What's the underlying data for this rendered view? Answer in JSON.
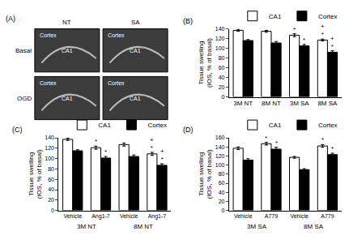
{
  "panel_a": {
    "title": "(A)",
    "columns": [
      "NT",
      "SA"
    ],
    "rows": [
      "Basal",
      "OGD"
    ],
    "regions": [
      "Cortex",
      "CA1"
    ]
  },
  "chart_data": [
    {
      "type": "bar",
      "title": "(B)",
      "y_label": "Tissue swelling (IOS, % of basal)",
      "categories": [
        "3M NT",
        "8M NT",
        "3M SA",
        "8M SA"
      ],
      "series": [
        {
          "name": "CA1",
          "color": "#ffffff",
          "values": [
            137,
            135,
            127,
            117
          ],
          "errors": [
            2,
            2,
            3,
            2
          ]
        },
        {
          "name": "Cortex",
          "color": "#000000",
          "values": [
            116,
            111,
            105,
            92
          ],
          "errors": [
            2,
            3,
            3,
            3
          ]
        }
      ],
      "ylim": [
        0,
        140
      ],
      "yticks": [
        0,
        20,
        40,
        60,
        80,
        100,
        120,
        140
      ],
      "grid": false,
      "legend": "upper right",
      "annotations": [
        {
          "category": 2,
          "series": "CA1",
          "lines": [
            "*"
          ]
        },
        {
          "category": 2,
          "series": "Cortex",
          "lines": [
            "*"
          ]
        },
        {
          "category": 3,
          "series": "CA1",
          "lines": [
            "+",
            "*"
          ]
        },
        {
          "category": 3,
          "series": "Cortex",
          "lines": [
            "+",
            "*"
          ]
        }
      ]
    },
    {
      "type": "bar",
      "title": "(C)",
      "y_label": "Tissue swelling (IOS, % of basal)",
      "categories": [
        "Vehicle",
        "Ang1-7",
        "Vehicle",
        "Ang1-7"
      ],
      "groups": [
        {
          "label": "3M NT",
          "categories": [
            0,
            1
          ]
        },
        {
          "label": "8M NT",
          "categories": [
            2,
            3
          ]
        }
      ],
      "series": [
        {
          "name": "CA1",
          "color": "#ffffff",
          "values": [
            137,
            121,
            127,
            109
          ],
          "errors": [
            2,
            3,
            3,
            3
          ]
        },
        {
          "name": "Cortex",
          "color": "#000000",
          "values": [
            115,
            101,
            104,
            87
          ],
          "errors": [
            2,
            3,
            3,
            3
          ]
        }
      ],
      "ylim": [
        0,
        140
      ],
      "yticks": [
        0,
        20,
        40,
        60,
        80,
        100,
        120,
        140
      ],
      "grid": false,
      "legend": "upper right",
      "annotations": [
        {
          "category": 1,
          "series": "CA1",
          "lines": [
            "*"
          ]
        },
        {
          "category": 1,
          "series": "Cortex",
          "lines": [
            "*"
          ]
        },
        {
          "category": 3,
          "series": "CA1",
          "lines": [
            "+",
            "*"
          ]
        },
        {
          "category": 3,
          "series": "Cortex",
          "lines": [
            "+",
            "*"
          ]
        }
      ]
    },
    {
      "type": "bar",
      "title": "(D)",
      "y_label": "Tissue swelling (IOS, % of basal)",
      "categories": [
        "Vehicle",
        "A779",
        "Vehicle",
        "A779"
      ],
      "groups": [
        {
          "label": "3M SA",
          "categories": [
            0,
            1
          ]
        },
        {
          "label": "8M SA",
          "categories": [
            2,
            3
          ]
        }
      ],
      "series": [
        {
          "name": "CA1",
          "color": "#ffffff",
          "values": [
            137,
            147,
            117,
            142
          ],
          "errors": [
            3,
            3,
            2,
            3
          ]
        },
        {
          "name": "Cortex",
          "color": "#000000",
          "values": [
            111,
            135,
            90,
            123
          ],
          "errors": [
            3,
            4,
            2,
            3
          ]
        }
      ],
      "ylim": [
        0,
        160
      ],
      "yticks": [
        0,
        20,
        40,
        60,
        80,
        100,
        120,
        140,
        160
      ],
      "grid": false,
      "legend": "upper right",
      "annotations": [
        {
          "category": 1,
          "series": "CA1",
          "lines": [
            "*"
          ]
        },
        {
          "category": 1,
          "series": "Cortex",
          "lines": [
            "*"
          ]
        },
        {
          "category": 3,
          "series": "CA1",
          "lines": [
            "*"
          ]
        },
        {
          "category": 3,
          "series": "Cortex",
          "lines": [
            "*"
          ]
        }
      ]
    }
  ]
}
